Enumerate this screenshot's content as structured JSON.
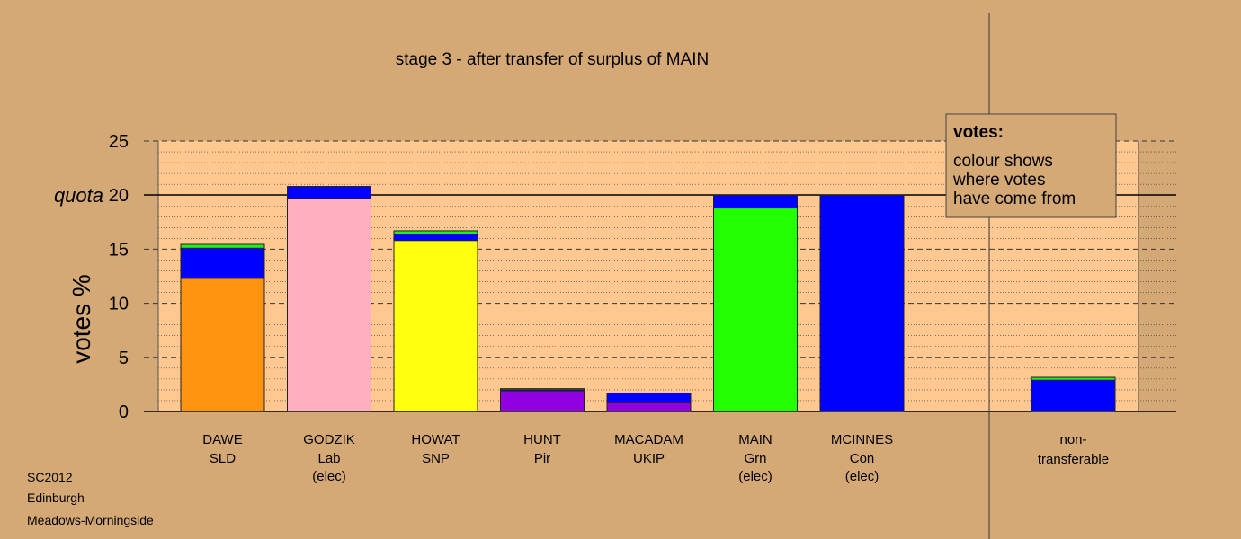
{
  "chart_data": {
    "type": "bar",
    "title": "stage 3 - after transfer of surplus of MAIN",
    "ylabel": "votes %",
    "ylim": [
      0,
      25
    ],
    "yticks": [
      0,
      5,
      10,
      15,
      20,
      25
    ],
    "quota": {
      "value": 20,
      "label": "quota"
    },
    "grid": true,
    "legend": {
      "placement": "top-right",
      "title": "votes:",
      "lines": [
        "colour shows",
        "where votes",
        "have come from"
      ]
    },
    "candidates": [
      {
        "name": "DAWE",
        "party": "SLD",
        "note": "",
        "segments": [
          {
            "color": "#ff9410",
            "value": 12.3
          },
          {
            "color": "#0000ff",
            "value": 2.8
          },
          {
            "color": "#22ee22",
            "value": 0.35
          }
        ]
      },
      {
        "name": "GODZIK",
        "party": "Lab",
        "note": "(elec)",
        "segments": [
          {
            "color": "#ffb0c0",
            "value": 19.7
          },
          {
            "color": "#0000ff",
            "value": 1.1
          }
        ]
      },
      {
        "name": "HOWAT",
        "party": "SNP",
        "note": "",
        "segments": [
          {
            "color": "#ffff10",
            "value": 15.8
          },
          {
            "color": "#0000ff",
            "value": 0.6
          },
          {
            "color": "#22ee22",
            "value": 0.3
          }
        ]
      },
      {
        "name": "HUNT",
        "party": "Pir",
        "note": "",
        "segments": [
          {
            "color": "#9000e0",
            "value": 1.9
          },
          {
            "color": "#0000ff",
            "value": 0.1
          },
          {
            "color": "#22ee22",
            "value": 0.1
          }
        ]
      },
      {
        "name": "MACADAM",
        "party": "UKIP",
        "note": "",
        "segments": [
          {
            "color": "#9000e0",
            "value": 0.8
          },
          {
            "color": "#0000ff",
            "value": 0.9
          }
        ]
      },
      {
        "name": "MAIN",
        "party": "Grn",
        "note": "(elec)",
        "segments": [
          {
            "color": "#22ff00",
            "value": 18.8
          },
          {
            "color": "#0000ff",
            "value": 1.2
          }
        ]
      },
      {
        "name": "MCINNES",
        "party": "Con",
        "note": "(elec)",
        "segments": [
          {
            "color": "#0000ff",
            "value": 20.0
          }
        ]
      }
    ],
    "nontransferable": {
      "label1": "non-",
      "label2": "transferable",
      "segments": [
        {
          "color": "#0000ff",
          "value": 2.9
        },
        {
          "color": "#22ee22",
          "value": 0.25
        }
      ]
    },
    "colors": {
      "background": "#d4a976",
      "plot_area": "#ffc890"
    }
  },
  "footer": {
    "election": "SC2012",
    "council": "Edinburgh",
    "ward": "Meadows-Morningside"
  }
}
